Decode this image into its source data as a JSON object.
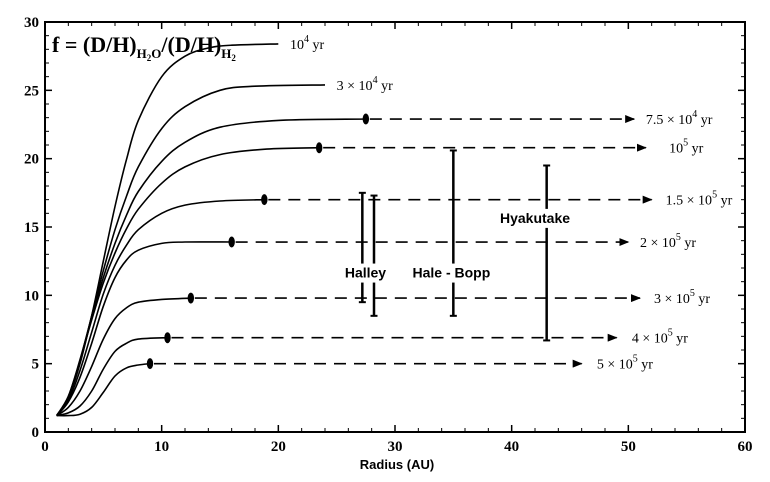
{
  "chart_data": {
    "type": "line",
    "title_main": "f = (D/H)",
    "title_sub1": "H",
    "title_sub1b": "2",
    "title_sub1c": "O",
    "title_mid": "/(D/H)",
    "title_sub2": "H",
    "title_sub2b": "2",
    "xlabel": "Radius (AU)",
    "ylabel": "",
    "xlim": [
      0,
      60
    ],
    "ylim": [
      0,
      30
    ],
    "xticks": [
      "0",
      "10",
      "20",
      "30",
      "40",
      "50",
      "60"
    ],
    "yticks": [
      "0",
      "5",
      "10",
      "15",
      "20",
      "25",
      "30"
    ],
    "series": [
      {
        "label_num": "10",
        "label_exp": "4",
        "label_pre": "",
        "label_unit": "yr",
        "points": [
          [
            1,
            1.2
          ],
          [
            2,
            2.5
          ],
          [
            3,
            5
          ],
          [
            4,
            8.5
          ],
          [
            5,
            12.5
          ],
          [
            6,
            16.5
          ],
          [
            7,
            20
          ],
          [
            8,
            22.8
          ],
          [
            10,
            26
          ],
          [
            12,
            27.5
          ],
          [
            14,
            28.1
          ],
          [
            16,
            28.3
          ],
          [
            20,
            28.4
          ]
        ],
        "marker_x": null,
        "arrow_end": null,
        "label_x": 21
      },
      {
        "label_num": "10",
        "label_exp": "4",
        "label_pre": "3 × ",
        "label_unit": "yr",
        "points": [
          [
            1,
            1.2
          ],
          [
            2,
            2.6
          ],
          [
            3,
            5.2
          ],
          [
            4,
            8.5
          ],
          [
            5,
            11.8
          ],
          [
            6,
            14.8
          ],
          [
            7,
            17.3
          ],
          [
            8,
            19.4
          ],
          [
            10,
            22.2
          ],
          [
            12,
            23.8
          ],
          [
            15,
            25
          ],
          [
            18,
            25.3
          ],
          [
            24,
            25.4
          ]
        ],
        "marker_x": null,
        "arrow_end": null,
        "label_x": 25
      },
      {
        "label_num": "10",
        "label_exp": "4",
        "label_pre": "7.5 × ",
        "label_unit": "yr",
        "points": [
          [
            1,
            1.2
          ],
          [
            2,
            2.6
          ],
          [
            3,
            5.3
          ],
          [
            4,
            8.4
          ],
          [
            5,
            11.3
          ],
          [
            6,
            13.8
          ],
          [
            7,
            15.9
          ],
          [
            8,
            17.6
          ],
          [
            10,
            19.8
          ],
          [
            12,
            21.2
          ],
          [
            15,
            22.3
          ],
          [
            20,
            22.8
          ],
          [
            27.5,
            22.9
          ]
        ],
        "marker_x": 27.5,
        "arrow_end": 50.5,
        "label_x": 51.5
      },
      {
        "label_num": "10",
        "label_exp": "5",
        "label_pre": "",
        "label_unit": "yr",
        "points": [
          [
            1,
            1.2
          ],
          [
            2,
            2.5
          ],
          [
            3,
            5.2
          ],
          [
            4,
            8.2
          ],
          [
            5,
            10.9
          ],
          [
            6,
            13.1
          ],
          [
            7,
            14.9
          ],
          [
            8,
            16.3
          ],
          [
            10,
            18.2
          ],
          [
            12,
            19.4
          ],
          [
            15,
            20.3
          ],
          [
            19,
            20.7
          ],
          [
            23.5,
            20.8
          ]
        ],
        "marker_x": 23.5,
        "arrow_end": 51.5,
        "label_x": 53.5
      },
      {
        "label_num": "10",
        "label_exp": "5",
        "label_pre": "1.5 × ",
        "label_unit": "yr",
        "points": [
          [
            1,
            1.2
          ],
          [
            2,
            2.3
          ],
          [
            3,
            4.5
          ],
          [
            4,
            7.3
          ],
          [
            5,
            10.1
          ],
          [
            6,
            12.2
          ],
          [
            7,
            13.7
          ],
          [
            8,
            14.8
          ],
          [
            10,
            16
          ],
          [
            12,
            16.6
          ],
          [
            15,
            16.9
          ],
          [
            18.8,
            17
          ]
        ],
        "marker_x": 18.8,
        "arrow_end": 52,
        "label_x": 53.2
      },
      {
        "label_num": "10",
        "label_exp": "5",
        "label_pre": "2 × ",
        "label_unit": "yr",
        "points": [
          [
            1,
            1.2
          ],
          [
            2,
            2.2
          ],
          [
            3,
            4
          ],
          [
            4,
            6.5
          ],
          [
            5,
            9.2
          ],
          [
            6,
            11.3
          ],
          [
            7,
            12.6
          ],
          [
            8,
            13.3
          ],
          [
            10,
            13.8
          ],
          [
            12,
            13.9
          ],
          [
            16,
            13.9
          ]
        ],
        "marker_x": 16,
        "arrow_end": 50,
        "label_x": 51
      },
      {
        "label_num": "10",
        "label_exp": "5",
        "label_pre": "3 × ",
        "label_unit": "yr",
        "points": [
          [
            1,
            1.2
          ],
          [
            2,
            1.8
          ],
          [
            3,
            3
          ],
          [
            4,
            4.8
          ],
          [
            5,
            6.8
          ],
          [
            6,
            8.3
          ],
          [
            7,
            9.1
          ],
          [
            8,
            9.5
          ],
          [
            10,
            9.7
          ],
          [
            12.5,
            9.8
          ]
        ],
        "marker_x": 12.5,
        "arrow_end": 51,
        "label_x": 52.2
      },
      {
        "label_num": "10",
        "label_exp": "5",
        "label_pre": "4 × ",
        "label_unit": "yr",
        "points": [
          [
            1,
            1.2
          ],
          [
            2,
            1.4
          ],
          [
            3,
            1.9
          ],
          [
            4,
            3
          ],
          [
            5,
            4.6
          ],
          [
            6,
            5.9
          ],
          [
            7,
            6.5
          ],
          [
            8,
            6.8
          ],
          [
            10.5,
            6.9
          ]
        ],
        "marker_x": 10.5,
        "arrow_end": 49,
        "label_x": 50.3
      },
      {
        "label_num": "10",
        "label_exp": "5",
        "label_pre": "5 × ",
        "label_unit": "yr",
        "points": [
          [
            1,
            1.2
          ],
          [
            2,
            1.2
          ],
          [
            3,
            1.3
          ],
          [
            4,
            1.8
          ],
          [
            5,
            2.9
          ],
          [
            6,
            4.1
          ],
          [
            7,
            4.7
          ],
          [
            8,
            4.9
          ],
          [
            9,
            5
          ]
        ],
        "marker_x": 9,
        "arrow_end": 46,
        "label_x": 47.3
      }
    ],
    "comets": [
      {
        "name": "Halley",
        "ranges": [
          [
            27.2,
            9.5,
            17.5
          ],
          [
            28.2,
            8.5,
            17.3
          ]
        ],
        "label_x": 25.7,
        "label_y": 11.3
      },
      {
        "name": "Hale - Bopp",
        "ranges": [
          [
            35,
            8.5,
            20.6
          ]
        ],
        "label_x": 31.5,
        "label_y": 11.3
      },
      {
        "name": "Hyakutake",
        "ranges": [
          [
            43,
            6.7,
            19.5
          ]
        ],
        "label_x": 39,
        "label_y": 15.3
      }
    ]
  }
}
